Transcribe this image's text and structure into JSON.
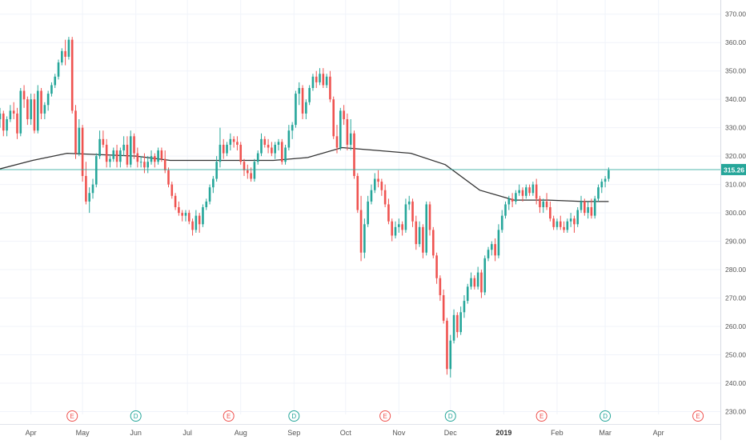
{
  "chart_data": {
    "type": "candlestick",
    "price_axis": {
      "ticks": [
        "230.00",
        "240.00",
        "250.00",
        "260.00",
        "270.00",
        "280.00",
        "290.00",
        "300.00",
        "310.00",
        "320.00",
        "330.00",
        "340.00",
        "350.00",
        "360.00",
        "370.00"
      ],
      "ylim": [
        229,
        375
      ]
    },
    "time_axis": {
      "labels": [
        {
          "text": "Apr",
          "day": -1
        },
        {
          "text": "May",
          "day": 29
        },
        {
          "text": "Jun",
          "day": 60
        },
        {
          "text": "Jul",
          "day": 90
        },
        {
          "text": "Aug",
          "day": 121
        },
        {
          "text": "Sep",
          "day": 152
        },
        {
          "text": "Oct",
          "day": 182
        },
        {
          "text": "Nov",
          "day": 213
        },
        {
          "text": "Dec",
          "day": 243
        },
        {
          "text": "2019",
          "day": 274
        },
        {
          "text": "Feb",
          "day": 305
        },
        {
          "text": "Mar",
          "day": 333
        },
        {
          "text": "Apr",
          "day": 364
        }
      ],
      "xlim": [
        -19,
        400
      ]
    },
    "candles": [
      [
        -19,
        333,
        337,
        330,
        335
      ],
      [
        -17,
        335,
        336,
        327,
        329
      ],
      [
        -15,
        329,
        334,
        327,
        333
      ],
      [
        -13,
        333,
        338,
        332,
        336
      ],
      [
        -11,
        336,
        339,
        333,
        335
      ],
      [
        -9,
        335,
        337,
        326,
        328
      ],
      [
        -7,
        328,
        344,
        327,
        343
      ],
      [
        -5,
        343,
        345,
        337,
        340
      ],
      [
        -3,
        340,
        341,
        331,
        333
      ],
      [
        -1,
        333,
        342,
        331,
        340
      ],
      [
        1,
        340,
        342,
        328,
        329
      ],
      [
        3,
        329,
        345,
        328,
        343
      ],
      [
        5,
        343,
        344,
        333,
        335
      ],
      [
        7,
        335,
        339,
        333,
        338
      ],
      [
        9,
        338,
        343,
        336,
        342
      ],
      [
        11,
        342,
        346,
        341,
        345
      ],
      [
        13,
        345,
        349,
        344,
        348
      ],
      [
        15,
        348,
        354,
        347,
        353
      ],
      [
        17,
        353,
        358,
        352,
        357
      ],
      [
        19,
        357,
        361,
        352,
        355
      ],
      [
        21,
        355,
        362,
        354,
        361
      ],
      [
        23,
        361,
        362,
        335,
        336
      ],
      [
        25,
        336,
        338,
        319,
        321
      ],
      [
        27,
        321,
        333,
        320,
        330
      ],
      [
        29,
        330,
        331,
        311,
        313
      ],
      [
        31,
        313,
        318,
        303,
        304
      ],
      [
        33,
        304,
        309,
        300,
        307
      ],
      [
        35,
        307,
        312,
        305,
        310
      ],
      [
        37,
        310,
        321,
        309,
        320
      ],
      [
        39,
        320,
        329,
        319,
        326
      ],
      [
        41,
        326,
        329,
        323,
        324
      ],
      [
        43,
        324,
        326,
        316,
        318
      ],
      [
        45,
        318,
        320,
        316,
        319
      ],
      [
        47,
        319,
        323,
        318,
        322
      ],
      [
        49,
        322,
        324,
        316,
        318
      ],
      [
        51,
        318,
        323,
        316,
        322
      ],
      [
        53,
        322,
        327,
        320,
        324
      ],
      [
        55,
        324,
        327,
        316,
        317
      ],
      [
        57,
        317,
        329,
        316,
        327
      ],
      [
        59,
        327,
        328,
        319,
        321
      ],
      [
        61,
        321,
        323,
        316,
        318
      ],
      [
        63,
        318,
        320,
        316,
        318
      ],
      [
        65,
        318,
        321,
        314,
        316
      ],
      [
        67,
        316,
        320,
        314,
        318
      ],
      [
        69,
        318,
        322,
        317,
        320
      ],
      [
        71,
        320,
        321,
        316,
        318
      ],
      [
        73,
        318,
        323,
        317,
        322
      ],
      [
        75,
        322,
        323,
        318,
        319
      ],
      [
        77,
        319,
        322,
        314,
        315
      ],
      [
        79,
        315,
        316,
        309,
        310
      ],
      [
        81,
        310,
        311,
        305,
        306
      ],
      [
        83,
        306,
        307,
        301,
        302
      ],
      [
        85,
        302,
        304,
        299,
        300
      ],
      [
        87,
        300,
        301,
        297,
        299
      ],
      [
        89,
        299,
        301,
        297,
        300
      ],
      [
        91,
        300,
        301,
        296,
        297
      ],
      [
        93,
        297,
        298,
        292,
        294
      ],
      [
        95,
        294,
        301,
        293,
        299
      ],
      [
        97,
        299,
        300,
        293,
        296
      ],
      [
        99,
        296,
        303,
        295,
        302
      ],
      [
        101,
        302,
        305,
        301,
        304
      ],
      [
        103,
        304,
        310,
        303,
        309
      ],
      [
        105,
        309,
        313,
        307,
        312
      ],
      [
        107,
        312,
        320,
        311,
        318
      ],
      [
        109,
        318,
        330,
        316,
        324
      ],
      [
        111,
        324,
        326,
        319,
        321
      ],
      [
        113,
        321,
        325,
        320,
        324
      ],
      [
        115,
        324,
        328,
        322,
        326
      ],
      [
        117,
        326,
        327,
        323,
        325
      ],
      [
        119,
        325,
        327,
        322,
        324
      ],
      [
        121,
        324,
        325,
        317,
        318
      ],
      [
        123,
        318,
        319,
        313,
        315
      ],
      [
        125,
        315,
        317,
        312,
        314
      ],
      [
        127,
        314,
        316,
        311,
        312
      ],
      [
        129,
        312,
        319,
        311,
        318
      ],
      [
        131,
        318,
        322,
        317,
        321
      ],
      [
        133,
        321,
        328,
        320,
        326
      ],
      [
        135,
        326,
        327,
        323,
        324
      ],
      [
        137,
        324,
        326,
        321,
        323
      ],
      [
        139,
        323,
        325,
        320,
        321
      ],
      [
        141,
        321,
        325,
        319,
        324
      ],
      [
        143,
        324,
        326,
        322,
        325
      ],
      [
        145,
        325,
        326,
        317,
        318
      ],
      [
        147,
        318,
        324,
        317,
        323
      ],
      [
        149,
        323,
        331,
        322,
        329
      ],
      [
        151,
        329,
        332,
        326,
        331
      ],
      [
        153,
        331,
        343,
        330,
        342
      ],
      [
        155,
        342,
        346,
        338,
        344
      ],
      [
        157,
        344,
        345,
        333,
        335
      ],
      [
        159,
        335,
        340,
        333,
        339
      ],
      [
        161,
        339,
        345,
        338,
        344
      ],
      [
        163,
        344,
        349,
        343,
        348
      ],
      [
        165,
        348,
        350,
        344,
        346
      ],
      [
        167,
        346,
        351,
        345,
        349
      ],
      [
        169,
        349,
        351,
        344,
        345
      ],
      [
        171,
        345,
        349,
        344,
        348
      ],
      [
        173,
        348,
        350,
        339,
        340
      ],
      [
        175,
        340,
        341,
        326,
        327
      ],
      [
        177,
        327,
        331,
        321,
        323
      ],
      [
        179,
        323,
        337,
        322,
        336
      ],
      [
        181,
        336,
        338,
        331,
        333
      ],
      [
        183,
        333,
        335,
        322,
        324
      ],
      [
        185,
        324,
        333,
        322,
        328
      ],
      [
        187,
        328,
        329,
        312,
        313
      ],
      [
        189,
        313,
        314,
        300,
        301
      ],
      [
        191,
        301,
        306,
        283,
        286
      ],
      [
        193,
        286,
        298,
        284,
        296
      ],
      [
        195,
        296,
        306,
        295,
        304
      ],
      [
        197,
        304,
        310,
        303,
        308
      ],
      [
        199,
        308,
        314,
        307,
        312
      ],
      [
        201,
        312,
        315,
        309,
        311
      ],
      [
        203,
        311,
        312,
        306,
        308
      ],
      [
        205,
        308,
        310,
        302,
        303
      ],
      [
        207,
        303,
        305,
        296,
        297
      ],
      [
        209,
        297,
        298,
        290,
        292
      ],
      [
        211,
        292,
        297,
        291,
        295
      ],
      [
        213,
        295,
        298,
        293,
        296
      ],
      [
        215,
        296,
        297,
        292,
        294
      ],
      [
        217,
        294,
        305,
        293,
        303
      ],
      [
        219,
        303,
        306,
        301,
        304
      ],
      [
        221,
        304,
        305,
        295,
        297
      ],
      [
        223,
        297,
        299,
        287,
        289
      ],
      [
        225,
        289,
        297,
        288,
        295
      ],
      [
        227,
        295,
        296,
        284,
        286
      ],
      [
        229,
        286,
        304,
        285,
        303
      ],
      [
        231,
        303,
        304,
        292,
        294
      ],
      [
        233,
        294,
        295,
        284,
        285
      ],
      [
        235,
        285,
        286,
        275,
        277
      ],
      [
        237,
        277,
        278,
        269,
        271
      ],
      [
        239,
        271,
        273,
        261,
        262
      ],
      [
        241,
        262,
        263,
        243,
        245
      ],
      [
        243,
        245,
        257,
        242,
        255
      ],
      [
        245,
        255,
        266,
        254,
        264
      ],
      [
        247,
        264,
        265,
        256,
        258
      ],
      [
        249,
        258,
        267,
        257,
        265
      ],
      [
        251,
        265,
        271,
        263,
        269
      ],
      [
        253,
        269,
        275,
        268,
        274
      ],
      [
        255,
        274,
        279,
        273,
        277
      ],
      [
        257,
        277,
        278,
        273,
        274
      ],
      [
        259,
        274,
        281,
        273,
        279
      ],
      [
        261,
        279,
        280,
        270,
        272
      ],
      [
        263,
        272,
        285,
        271,
        284
      ],
      [
        265,
        284,
        288,
        283,
        287
      ],
      [
        267,
        287,
        290,
        285,
        289
      ],
      [
        269,
        289,
        291,
        283,
        285
      ],
      [
        271,
        285,
        296,
        284,
        294
      ],
      [
        273,
        294,
        301,
        293,
        299
      ],
      [
        275,
        299,
        304,
        298,
        303
      ],
      [
        277,
        303,
        306,
        301,
        305
      ],
      [
        279,
        305,
        307,
        302,
        304
      ],
      [
        281,
        304,
        308,
        303,
        307
      ],
      [
        283,
        307,
        310,
        306,
        308
      ],
      [
        285,
        308,
        309,
        304,
        306
      ],
      [
        287,
        306,
        310,
        305,
        309
      ],
      [
        289,
        309,
        310,
        306,
        307
      ],
      [
        291,
        307,
        311,
        306,
        310
      ],
      [
        293,
        310,
        312,
        303,
        305
      ],
      [
        295,
        305,
        306,
        300,
        302
      ],
      [
        297,
        302,
        305,
        300,
        304
      ],
      [
        299,
        304,
        307,
        301,
        302
      ],
      [
        301,
        302,
        304,
        297,
        298
      ],
      [
        303,
        298,
        299,
        294,
        295
      ],
      [
        305,
        295,
        298,
        294,
        297
      ],
      [
        307,
        297,
        299,
        294,
        295
      ],
      [
        309,
        295,
        297,
        293,
        294
      ],
      [
        311,
        294,
        298,
        293,
        297
      ],
      [
        313,
        297,
        300,
        295,
        298
      ],
      [
        315,
        298,
        299,
        293,
        296
      ],
      [
        317,
        296,
        302,
        295,
        301
      ],
      [
        319,
        301,
        306,
        300,
        304
      ],
      [
        321,
        304,
        305,
        299,
        300
      ],
      [
        323,
        300,
        304,
        298,
        302
      ],
      [
        325,
        302,
        305,
        298,
        299
      ],
      [
        327,
        299,
        306,
        298,
        305
      ],
      [
        329,
        305,
        310,
        304,
        309
      ],
      [
        331,
        309,
        312,
        307,
        311
      ],
      [
        333,
        311,
        313,
        309,
        312
      ],
      [
        335,
        312,
        316,
        311,
        315
      ]
    ],
    "moving_average": [
      [
        -19,
        315.5
      ],
      [
        0,
        318.5
      ],
      [
        20,
        321
      ],
      [
        40,
        320.5
      ],
      [
        60,
        320
      ],
      [
        80,
        318.5
      ],
      [
        100,
        318.5
      ],
      [
        120,
        318.5
      ],
      [
        140,
        318.5
      ],
      [
        160,
        319.5
      ],
      [
        180,
        323
      ],
      [
        200,
        322
      ],
      [
        220,
        321
      ],
      [
        240,
        317
      ],
      [
        260,
        308
      ],
      [
        280,
        304.5
      ],
      [
        300,
        304.5
      ],
      [
        320,
        304
      ],
      [
        335,
        304
      ]
    ],
    "last_price": "315.26",
    "last_price_value": 315.26,
    "events": [
      {
        "letter": "E",
        "day": 23,
        "kind": "earnings"
      },
      {
        "letter": "D",
        "day": 60,
        "kind": "dividend"
      },
      {
        "letter": "E",
        "day": 114,
        "kind": "earnings"
      },
      {
        "letter": "D",
        "day": 152,
        "kind": "dividend"
      },
      {
        "letter": "E",
        "day": 205,
        "kind": "earnings"
      },
      {
        "letter": "D",
        "day": 243,
        "kind": "dividend"
      },
      {
        "letter": "E",
        "day": 296,
        "kind": "earnings"
      },
      {
        "letter": "D",
        "day": 333,
        "kind": "dividend"
      },
      {
        "letter": "E",
        "day": 387,
        "kind": "earnings"
      }
    ],
    "colors": {
      "up": "#26a69a",
      "down": "#ef5350",
      "moving_average": "#333333",
      "last_price": "#26a69a",
      "earnings": "#ef5350",
      "dividend": "#26a69a",
      "grid": "#f0f3fa",
      "axis_text": "#555555"
    },
    "grid": true,
    "legend": "none"
  }
}
